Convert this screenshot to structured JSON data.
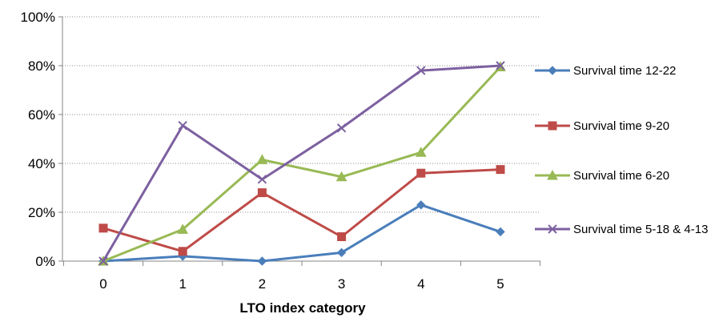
{
  "chart_data": {
    "type": "line",
    "title": "",
    "xlabel": "LTO index category",
    "ylabel": "",
    "x": [
      0,
      1,
      2,
      3,
      4,
      5
    ],
    "x_tick_labels": [
      "0",
      "1",
      "2",
      "3",
      "4",
      "5"
    ],
    "ylim": [
      0,
      100
    ],
    "y_ticks": [
      0,
      20,
      40,
      60,
      80,
      100
    ],
    "y_tick_labels": [
      "0%",
      "20%",
      "40%",
      "60%",
      "80%",
      "100%"
    ],
    "grid": "horizontal dotted",
    "legend_position": "right",
    "series": [
      {
        "name": "Survival time 12-22",
        "color": "#4a7ebb",
        "marker": "diamond",
        "values": [
          0,
          2,
          0,
          3.5,
          23,
          12
        ]
      },
      {
        "name": "Survival time 9-20",
        "color": "#be4b48",
        "marker": "square",
        "values": [
          13.5,
          4,
          28,
          10,
          36,
          37.5
        ]
      },
      {
        "name": "Survival time 6-20",
        "color": "#98b954",
        "marker": "triangle",
        "values": [
          0,
          13,
          41.5,
          34.5,
          44.5,
          79.5
        ]
      },
      {
        "name": "Survival time 5-18 & 4-13",
        "color": "#7d60a0",
        "marker": "x",
        "values": [
          0,
          55.5,
          33.5,
          54.5,
          78,
          80
        ]
      }
    ]
  }
}
